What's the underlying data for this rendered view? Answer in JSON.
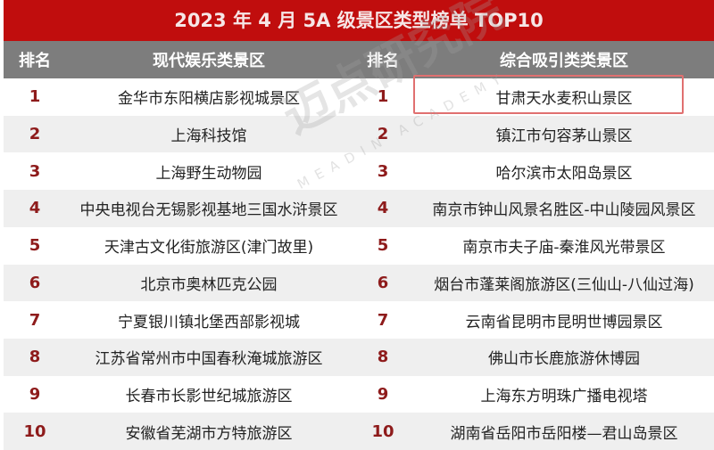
{
  "title": "2023 年 4 月 5A 级景区类型榜单 TOP10",
  "headers": {
    "rank1": "排名",
    "col1": "现代娱乐类景区",
    "rank2": "排名",
    "col2": "综合吸引类类景区"
  },
  "watermark": {
    "cn": "迈点研究院",
    "en": "MEADIN ACADEMY"
  },
  "rows": [
    {
      "r1": "1",
      "a": "金华市东阳横店影视城景区",
      "r2": "1",
      "b": "甘肃天水麦积山景区"
    },
    {
      "r1": "2",
      "a": "上海科技馆",
      "r2": "2",
      "b": "镇江市句容茅山景区"
    },
    {
      "r1": "3",
      "a": "上海野生动物园",
      "r2": "3",
      "b": "哈尔滨市太阳岛景区"
    },
    {
      "r1": "4",
      "a": "中央电视台无锡影视基地三国水浒景区",
      "r2": "4",
      "b": "南京市钟山风景名胜区-中山陵园风景区"
    },
    {
      "r1": "5",
      "a": "天津古文化街旅游区(津门故里)",
      "r2": "5",
      "b": "南京市夫子庙-秦淮风光带景区"
    },
    {
      "r1": "6",
      "a": "北京市奥林匹克公园",
      "r2": "6",
      "b": "烟台市蓬莱阁旅游区(三仙山-八仙过海)"
    },
    {
      "r1": "7",
      "a": "宁夏银川镇北堡西部影视城",
      "r2": "7",
      "b": "云南省昆明市昆明世博园景区"
    },
    {
      "r1": "8",
      "a": "江苏省常州市中国春秋淹城旅游区",
      "r2": "8",
      "b": "佛山市长鹿旅游休博园"
    },
    {
      "r1": "9",
      "a": "长春市长影世纪城旅游区",
      "r2": "9",
      "b": "上海东方明珠广播电视塔"
    },
    {
      "r1": "10",
      "a": "安徽省芜湖市方特旅游区",
      "r2": "10",
      "b": "湖南省岳阳市岳阳楼—君山岛景区"
    }
  ],
  "colors": {
    "title_bg": "#c00d0d",
    "header_bg": "#7d7d7d",
    "rank": "#8e1b1b",
    "highlight": "#e07070"
  }
}
